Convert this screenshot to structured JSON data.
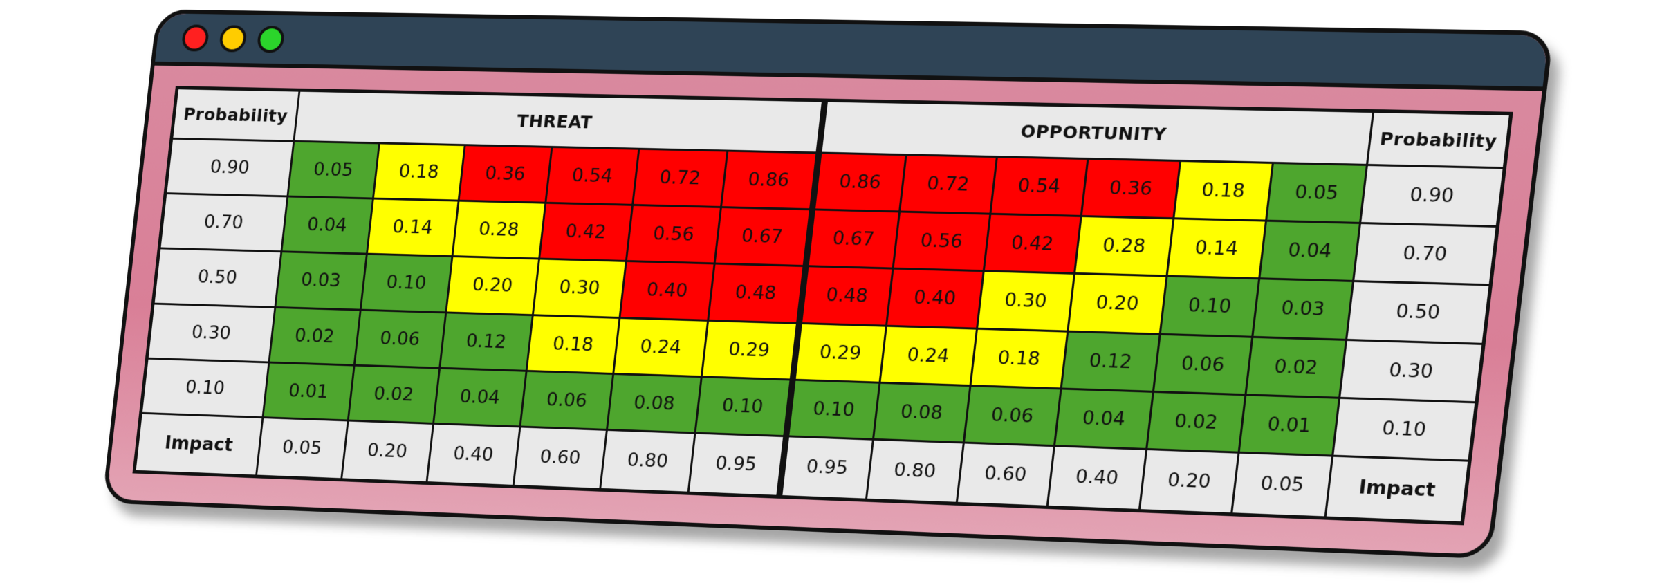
{
  "colors": {
    "low": "#4ea62e",
    "medium": "#ffff00",
    "high": "#ff0000",
    "frame": "#d98ba0",
    "titlebar": "#2f4456",
    "window_buttons": [
      "#ff2020",
      "#ffcc00",
      "#2bd52b"
    ]
  },
  "header": {
    "probability_left": "Probability",
    "threat": "THREAT",
    "opportunity": "OPPORTUNITY",
    "probability_right": "Probability"
  },
  "rows": [
    {
      "probability": "0.90",
      "threat": [
        {
          "v": "0.05",
          "c": "green"
        },
        {
          "v": "0.18",
          "c": "yellow"
        },
        {
          "v": "0.36",
          "c": "red"
        },
        {
          "v": "0.54",
          "c": "red"
        },
        {
          "v": "0.72",
          "c": "red"
        },
        {
          "v": "0.86",
          "c": "red"
        }
      ],
      "opportunity": [
        {
          "v": "0.86",
          "c": "red"
        },
        {
          "v": "0.72",
          "c": "red"
        },
        {
          "v": "0.54",
          "c": "red"
        },
        {
          "v": "0.36",
          "c": "red"
        },
        {
          "v": "0.18",
          "c": "yellow"
        },
        {
          "v": "0.05",
          "c": "green"
        }
      ]
    },
    {
      "probability": "0.70",
      "threat": [
        {
          "v": "0.04",
          "c": "green"
        },
        {
          "v": "0.14",
          "c": "yellow"
        },
        {
          "v": "0.28",
          "c": "yellow"
        },
        {
          "v": "0.42",
          "c": "red"
        },
        {
          "v": "0.56",
          "c": "red"
        },
        {
          "v": "0.67",
          "c": "red"
        }
      ],
      "opportunity": [
        {
          "v": "0.67",
          "c": "red"
        },
        {
          "v": "0.56",
          "c": "red"
        },
        {
          "v": "0.42",
          "c": "red"
        },
        {
          "v": "0.28",
          "c": "yellow"
        },
        {
          "v": "0.14",
          "c": "yellow"
        },
        {
          "v": "0.04",
          "c": "green"
        }
      ]
    },
    {
      "probability": "0.50",
      "threat": [
        {
          "v": "0.03",
          "c": "green"
        },
        {
          "v": "0.10",
          "c": "green"
        },
        {
          "v": "0.20",
          "c": "yellow"
        },
        {
          "v": "0.30",
          "c": "yellow"
        },
        {
          "v": "0.40",
          "c": "red"
        },
        {
          "v": "0.48",
          "c": "red"
        }
      ],
      "opportunity": [
        {
          "v": "0.48",
          "c": "red"
        },
        {
          "v": "0.40",
          "c": "red"
        },
        {
          "v": "0.30",
          "c": "yellow"
        },
        {
          "v": "0.20",
          "c": "yellow"
        },
        {
          "v": "0.10",
          "c": "green"
        },
        {
          "v": "0.03",
          "c": "green"
        }
      ]
    },
    {
      "probability": "0.30",
      "threat": [
        {
          "v": "0.02",
          "c": "green"
        },
        {
          "v": "0.06",
          "c": "green"
        },
        {
          "v": "0.12",
          "c": "green"
        },
        {
          "v": "0.18",
          "c": "yellow"
        },
        {
          "v": "0.24",
          "c": "yellow"
        },
        {
          "v": "0.29",
          "c": "yellow"
        }
      ],
      "opportunity": [
        {
          "v": "0.29",
          "c": "yellow"
        },
        {
          "v": "0.24",
          "c": "yellow"
        },
        {
          "v": "0.18",
          "c": "yellow"
        },
        {
          "v": "0.12",
          "c": "green"
        },
        {
          "v": "0.06",
          "c": "green"
        },
        {
          "v": "0.02",
          "c": "green"
        }
      ]
    },
    {
      "probability": "0.10",
      "threat": [
        {
          "v": "0.01",
          "c": "green"
        },
        {
          "v": "0.02",
          "c": "green"
        },
        {
          "v": "0.04",
          "c": "green"
        },
        {
          "v": "0.06",
          "c": "green"
        },
        {
          "v": "0.08",
          "c": "green"
        },
        {
          "v": "0.10",
          "c": "green"
        }
      ],
      "opportunity": [
        {
          "v": "0.10",
          "c": "green"
        },
        {
          "v": "0.08",
          "c": "green"
        },
        {
          "v": "0.06",
          "c": "green"
        },
        {
          "v": "0.04",
          "c": "green"
        },
        {
          "v": "0.02",
          "c": "green"
        },
        {
          "v": "0.01",
          "c": "green"
        }
      ]
    }
  ],
  "impact": {
    "label_left": "Impact",
    "threat": [
      "0.05",
      "0.20",
      "0.40",
      "0.60",
      "0.80",
      "0.95"
    ],
    "opportunity": [
      "0.95",
      "0.80",
      "0.60",
      "0.40",
      "0.20",
      "0.05"
    ],
    "label_right": "Impact"
  }
}
